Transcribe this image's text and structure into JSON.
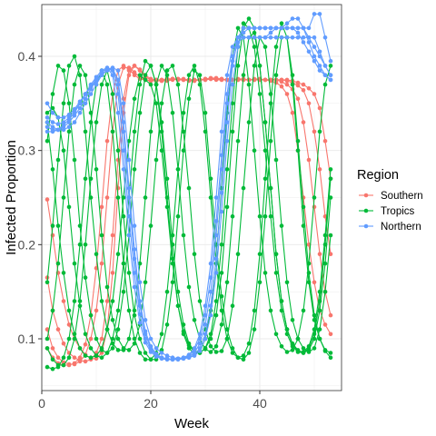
{
  "chart_data": {
    "type": "line",
    "xlabel": "Week",
    "ylabel": "Infected Proportion",
    "xlim": [
      0,
      55
    ],
    "ylim": [
      0.045,
      0.455
    ],
    "x_ticks": [
      0,
      20,
      40
    ],
    "y_ticks": [
      0.1,
      0.2,
      0.3,
      0.4
    ],
    "grid": true,
    "legend_title": "Region",
    "legend_position": "right",
    "x": [
      1,
      2,
      3,
      4,
      5,
      6,
      7,
      8,
      9,
      10,
      11,
      12,
      13,
      14,
      15,
      16,
      17,
      18,
      19,
      20,
      21,
      22,
      23,
      24,
      25,
      26,
      27,
      28,
      29,
      30,
      31,
      32,
      33,
      34,
      35,
      36,
      37,
      38,
      39,
      40,
      41,
      42,
      43,
      44,
      45,
      46,
      47,
      48,
      49,
      50,
      51,
      52,
      53
    ],
    "series": [
      {
        "name": "Southern",
        "color": "#F8766D",
        "lines": [
          [
            0.248,
            0.21,
            0.17,
            0.14,
            0.115,
            0.1,
            0.09,
            0.083,
            0.079,
            0.079,
            0.085,
            0.11,
            0.17,
            0.26,
            0.34,
            0.38,
            0.39,
            0.385,
            0.378,
            0.375,
            0.374,
            0.374,
            0.375,
            0.376,
            0.375,
            0.375,
            0.374,
            0.374,
            0.375,
            0.376,
            0.377,
            0.377,
            0.376,
            0.375,
            0.375,
            0.375,
            0.375,
            0.375,
            0.375,
            0.375,
            0.375,
            0.374,
            0.372,
            0.368,
            0.36,
            0.34,
            0.3,
            0.25,
            0.2,
            0.16,
            0.13,
            0.115,
            0.105
          ],
          [
            0.165,
            0.13,
            0.11,
            0.095,
            0.085,
            0.08,
            0.077,
            0.076,
            0.078,
            0.085,
            0.1,
            0.14,
            0.21,
            0.29,
            0.355,
            0.385,
            0.39,
            0.386,
            0.38,
            0.376,
            0.375,
            0.374,
            0.374,
            0.375,
            0.376,
            0.376,
            0.375,
            0.375,
            0.375,
            0.375,
            0.376,
            0.376,
            0.375,
            0.375,
            0.375,
            0.376,
            0.376,
            0.375,
            0.375,
            0.375,
            0.375,
            0.375,
            0.375,
            0.373,
            0.37,
            0.365,
            0.355,
            0.33,
            0.29,
            0.24,
            0.19,
            0.15,
            0.125
          ],
          [
            0.11,
            0.09,
            0.08,
            0.075,
            0.073,
            0.073,
            0.076,
            0.083,
            0.1,
            0.13,
            0.18,
            0.25,
            0.32,
            0.37,
            0.388,
            0.388,
            0.383,
            0.378,
            0.375,
            0.374,
            0.374,
            0.375,
            0.376,
            0.376,
            0.375,
            0.375,
            0.375,
            0.374,
            0.375,
            0.376,
            0.376,
            0.375,
            0.375,
            0.375,
            0.375,
            0.375,
            0.375,
            0.375,
            0.376,
            0.376,
            0.375,
            0.375,
            0.375,
            0.375,
            0.374,
            0.372,
            0.369,
            0.364,
            0.35,
            0.32,
            0.28,
            0.23,
            0.19
          ],
          [
            0.09,
            0.08,
            0.074,
            0.072,
            0.072,
            0.074,
            0.08,
            0.094,
            0.125,
            0.175,
            0.24,
            0.31,
            0.36,
            0.385,
            0.39,
            0.386,
            0.38,
            0.376,
            0.375,
            0.374,
            0.375,
            0.375,
            0.376,
            0.376,
            0.376,
            0.375,
            0.375,
            0.375,
            0.375,
            0.375,
            0.376,
            0.376,
            0.376,
            0.375,
            0.375,
            0.375,
            0.375,
            0.375,
            0.375,
            0.375,
            0.375,
            0.375,
            0.375,
            0.375,
            0.375,
            0.374,
            0.372,
            0.37,
            0.366,
            0.36,
            0.345,
            0.31,
            0.27
          ]
        ]
      },
      {
        "name": "Tropics",
        "color": "#00BA38",
        "lines": [
          [
            0.33,
            0.28,
            0.22,
            0.17,
            0.13,
            0.105,
            0.09,
            0.082,
            0.08,
            0.082,
            0.09,
            0.11,
            0.14,
            0.19,
            0.25,
            0.31,
            0.355,
            0.38,
            0.375,
            0.37,
            0.35,
            0.3,
            0.24,
            0.18,
            0.135,
            0.108,
            0.093,
            0.086,
            0.085,
            0.09,
            0.105,
            0.14,
            0.2,
            0.28,
            0.35,
            0.41,
            0.435,
            0.43,
            0.41,
            0.36,
            0.3,
            0.23,
            0.17,
            0.13,
            0.105,
            0.092,
            0.086,
            0.085,
            0.09,
            0.105,
            0.14,
            0.2,
            0.27
          ],
          [
            0.34,
            0.345,
            0.335,
            0.3,
            0.24,
            0.18,
            0.135,
            0.105,
            0.09,
            0.082,
            0.08,
            0.085,
            0.1,
            0.13,
            0.18,
            0.25,
            0.32,
            0.37,
            0.395,
            0.39,
            0.37,
            0.33,
            0.27,
            0.2,
            0.15,
            0.115,
            0.095,
            0.087,
            0.085,
            0.09,
            0.1,
            0.125,
            0.17,
            0.24,
            0.32,
            0.39,
            0.43,
            0.44,
            0.43,
            0.39,
            0.33,
            0.26,
            0.19,
            0.14,
            0.11,
            0.095,
            0.088,
            0.085,
            0.088,
            0.1,
            0.13,
            0.18,
            0.25
          ],
          [
            0.1,
            0.13,
            0.18,
            0.25,
            0.32,
            0.37,
            0.39,
            0.38,
            0.34,
            0.28,
            0.21,
            0.155,
            0.12,
            0.1,
            0.09,
            0.088,
            0.095,
            0.115,
            0.16,
            0.22,
            0.29,
            0.35,
            0.385,
            0.39,
            0.37,
            0.32,
            0.26,
            0.19,
            0.14,
            0.11,
            0.092,
            0.086,
            0.087,
            0.1,
            0.135,
            0.19,
            0.26,
            0.33,
            0.39,
            0.42,
            0.41,
            0.36,
            0.29,
            0.22,
            0.16,
            0.12,
            0.1,
            0.09,
            0.086,
            0.09,
            0.11,
            0.15,
            0.21
          ],
          [
            0.16,
            0.22,
            0.29,
            0.35,
            0.39,
            0.4,
            0.38,
            0.32,
            0.25,
            0.19,
            0.14,
            0.11,
            0.095,
            0.088,
            0.088,
            0.1,
            0.13,
            0.18,
            0.25,
            0.32,
            0.37,
            0.39,
            0.38,
            0.34,
            0.28,
            0.21,
            0.155,
            0.12,
            0.1,
            0.089,
            0.086,
            0.092,
            0.115,
            0.16,
            0.23,
            0.31,
            0.38,
            0.42,
            0.425,
            0.39,
            0.33,
            0.26,
            0.19,
            0.14,
            0.11,
            0.094,
            0.087,
            0.086,
            0.092,
            0.11,
            0.15,
            0.21,
            0.28
          ],
          [
            0.31,
            0.36,
            0.39,
            0.385,
            0.35,
            0.29,
            0.22,
            0.165,
            0.125,
            0.1,
            0.088,
            0.085,
            0.09,
            0.11,
            0.15,
            0.21,
            0.28,
            0.34,
            0.38,
            0.39,
            0.37,
            0.32,
            0.25,
            0.185,
            0.135,
            0.105,
            0.09,
            0.084,
            0.086,
            0.1,
            0.13,
            0.185,
            0.26,
            0.34,
            0.4,
            0.43,
            0.42,
            0.37,
            0.3,
            0.23,
            0.17,
            0.13,
            0.105,
            0.092,
            0.086,
            0.088,
            0.1,
            0.13,
            0.18,
            0.25,
            0.32,
            0.37,
            0.39
          ],
          [
            0.07,
            0.068,
            0.07,
            0.08,
            0.1,
            0.14,
            0.2,
            0.27,
            0.33,
            0.37,
            0.385,
            0.37,
            0.32,
            0.25,
            0.18,
            0.13,
            0.1,
            0.085,
            0.078,
            0.078,
            0.085,
            0.105,
            0.15,
            0.21,
            0.28,
            0.34,
            0.38,
            0.39,
            0.37,
            0.32,
            0.25,
            0.18,
            0.13,
            0.1,
            0.085,
            0.08,
            0.082,
            0.095,
            0.13,
            0.19,
            0.27,
            0.35,
            0.41,
            0.435,
            0.42,
            0.37,
            0.3,
            0.22,
            0.16,
            0.12,
            0.1,
            0.088,
            0.085
          ],
          [
            0.09,
            0.078,
            0.072,
            0.072,
            0.08,
            0.1,
            0.14,
            0.2,
            0.27,
            0.33,
            0.37,
            0.385,
            0.36,
            0.3,
            0.23,
            0.17,
            0.125,
            0.1,
            0.085,
            0.078,
            0.078,
            0.088,
            0.115,
            0.16,
            0.23,
            0.3,
            0.355,
            0.385,
            0.38,
            0.34,
            0.27,
            0.2,
            0.145,
            0.11,
            0.09,
            0.08,
            0.078,
            0.085,
            0.11,
            0.16,
            0.23,
            0.31,
            0.38,
            0.42,
            0.42,
            0.38,
            0.31,
            0.24,
            0.17,
            0.125,
            0.1,
            0.087,
            0.08
          ]
        ]
      },
      {
        "name": "Northern",
        "color": "#619CFF",
        "lines": [
          [
            0.33,
            0.325,
            0.322,
            0.322,
            0.325,
            0.33,
            0.34,
            0.35,
            0.36,
            0.37,
            0.38,
            0.386,
            0.388,
            0.385,
            0.35,
            0.29,
            0.22,
            0.16,
            0.12,
            0.1,
            0.09,
            0.085,
            0.082,
            0.08,
            0.079,
            0.079,
            0.08,
            0.082,
            0.087,
            0.1,
            0.125,
            0.17,
            0.235,
            0.31,
            0.37,
            0.41,
            0.43,
            0.43,
            0.43,
            0.43,
            0.43,
            0.43,
            0.43,
            0.43,
            0.43,
            0.43,
            0.43,
            0.43,
            0.42,
            0.41,
            0.4,
            0.39,
            0.38
          ],
          [
            0.325,
            0.322,
            0.322,
            0.325,
            0.33,
            0.337,
            0.345,
            0.355,
            0.365,
            0.375,
            0.383,
            0.387,
            0.387,
            0.37,
            0.32,
            0.25,
            0.185,
            0.135,
            0.105,
            0.09,
            0.083,
            0.08,
            0.079,
            0.078,
            0.079,
            0.08,
            0.083,
            0.09,
            0.105,
            0.135,
            0.18,
            0.25,
            0.32,
            0.38,
            0.41,
            0.42,
            0.42,
            0.42,
            0.42,
            0.42,
            0.42,
            0.425,
            0.43,
            0.43,
            0.43,
            0.43,
            0.425,
            0.415,
            0.405,
            0.395,
            0.385,
            0.38,
            0.375
          ],
          [
            0.32,
            0.32,
            0.322,
            0.327,
            0.333,
            0.34,
            0.35,
            0.36,
            0.37,
            0.378,
            0.385,
            0.388,
            0.38,
            0.34,
            0.28,
            0.21,
            0.155,
            0.117,
            0.096,
            0.086,
            0.081,
            0.079,
            0.078,
            0.078,
            0.079,
            0.08,
            0.082,
            0.088,
            0.1,
            0.125,
            0.165,
            0.225,
            0.295,
            0.36,
            0.4,
            0.42,
            0.425,
            0.43,
            0.43,
            0.43,
            0.43,
            0.43,
            0.43,
            0.43,
            0.435,
            0.44,
            0.44,
            0.43,
            0.415,
            0.4,
            0.39,
            0.38,
            0.375
          ],
          [
            0.335,
            0.33,
            0.328,
            0.33,
            0.335,
            0.342,
            0.35,
            0.36,
            0.368,
            0.376,
            0.383,
            0.387,
            0.385,
            0.36,
            0.3,
            0.23,
            0.17,
            0.126,
            0.1,
            0.088,
            0.082,
            0.079,
            0.078,
            0.078,
            0.078,
            0.079,
            0.081,
            0.085,
            0.095,
            0.115,
            0.15,
            0.21,
            0.28,
            0.35,
            0.395,
            0.415,
            0.42,
            0.42,
            0.42,
            0.42,
            0.42,
            0.42,
            0.42,
            0.42,
            0.42,
            0.42,
            0.42,
            0.42,
            0.42,
            0.42,
            0.405,
            0.39,
            0.38
          ],
          [
            0.35,
            0.34,
            0.335,
            0.335,
            0.338,
            0.344,
            0.352,
            0.36,
            0.367,
            0.374,
            0.38,
            0.385,
            0.387,
            0.375,
            0.33,
            0.26,
            0.195,
            0.14,
            0.108,
            0.092,
            0.084,
            0.08,
            0.079,
            0.078,
            0.078,
            0.079,
            0.08,
            0.083,
            0.09,
            0.105,
            0.135,
            0.185,
            0.255,
            0.33,
            0.39,
            0.42,
            0.43,
            0.43,
            0.43,
            0.43,
            0.43,
            0.43,
            0.43,
            0.43,
            0.43,
            0.43,
            0.43,
            0.43,
            0.43,
            0.445,
            0.445,
            0.42,
            0.395
          ]
        ]
      }
    ]
  }
}
